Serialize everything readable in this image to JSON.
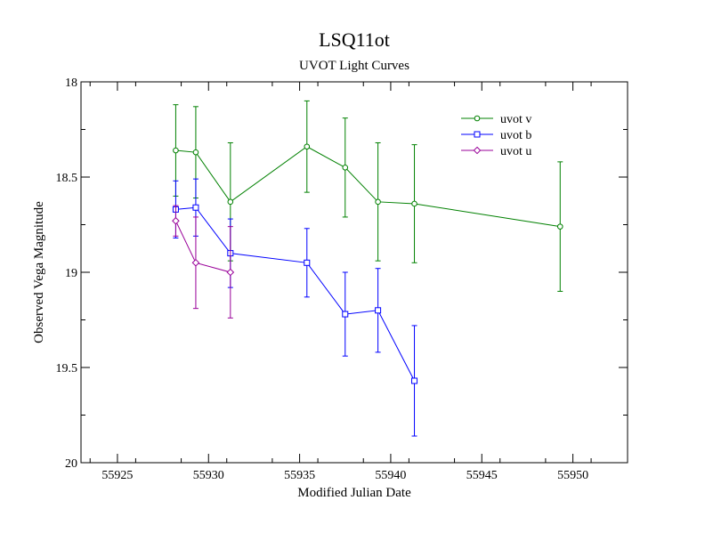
{
  "chart_data": {
    "type": "scatter",
    "title": "LSQ11ot",
    "subtitle": "UVOT Light Curves",
    "xlabel": "Modified Julian Date",
    "ylabel": "Observed Vega Magnitude",
    "xlim": [
      55923,
      55953
    ],
    "ylim": [
      20,
      18
    ],
    "y_inverted": true,
    "x_ticks": [
      55925,
      55930,
      55935,
      55940,
      55945,
      55950
    ],
    "x_tick_labels": [
      "55925",
      "55930",
      "55935",
      "55940",
      "55945",
      "55950"
    ],
    "y_ticks": [
      18,
      18.5,
      19,
      19.5,
      20
    ],
    "y_tick_labels": [
      "18",
      "18.5",
      "19",
      "19.5",
      "20"
    ],
    "grid": false,
    "legend_position": "top-right",
    "series": [
      {
        "name": "uvot v",
        "color": "#008000",
        "marker": "circle",
        "x": [
          55928.2,
          55929.3,
          55931.2,
          55935.4,
          55937.5,
          55939.3,
          55941.3,
          55949.3
        ],
        "y": [
          18.36,
          18.37,
          18.63,
          18.34,
          18.45,
          18.63,
          18.64,
          18.76
        ],
        "err": [
          0.24,
          0.24,
          0.31,
          0.24,
          0.26,
          0.31,
          0.31,
          0.34
        ]
      },
      {
        "name": "uvot b",
        "color": "#0000ff",
        "marker": "square",
        "x": [
          55928.2,
          55929.3,
          55931.2,
          55935.4,
          55937.5,
          55939.3,
          55941.3
        ],
        "y": [
          18.67,
          18.66,
          18.9,
          18.95,
          19.22,
          19.2,
          19.57
        ],
        "err": [
          0.15,
          0.15,
          0.18,
          0.18,
          0.22,
          0.22,
          0.29
        ]
      },
      {
        "name": "uvot u",
        "color": "#990099",
        "marker": "diamond",
        "x": [
          55928.2,
          55929.3,
          55931.2
        ],
        "y": [
          18.73,
          18.95,
          19.0
        ],
        "err": [
          0.08,
          0.24,
          0.24
        ]
      }
    ]
  }
}
